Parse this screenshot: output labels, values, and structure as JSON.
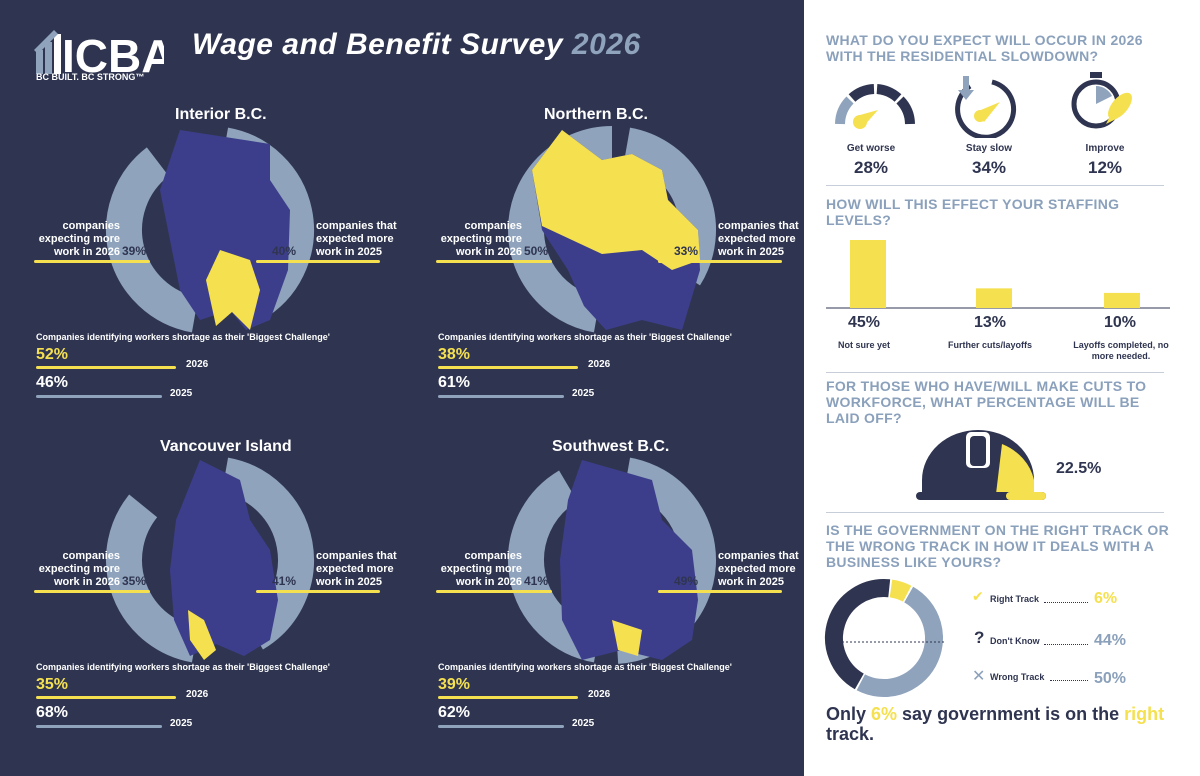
{
  "header": {
    "logo_text": "ICBA",
    "logo_tagline": "BC BUILT. BC STRONG™",
    "title_main": "Wage and Benefit Survey",
    "title_year": "2026"
  },
  "colors": {
    "navy": "#2f3550",
    "slate": "#8fa3bd",
    "yellow": "#f5e050",
    "region": "#3c3e8c"
  },
  "regions": [
    {
      "name": "Interior B.C.",
      "expecting_2026_label": "companies expecting more work in 2026",
      "expecting_2026_pct": "39%",
      "expected_2025_label": "companies that expected more work in 2025",
      "expected_2025_pct": "40%",
      "shortage_caption": "Companies identifying workers shortage as their 'Biggest Challenge'",
      "shortage_2026": "52%",
      "shortage_2026_year": "2026",
      "shortage_2025": "46%",
      "shortage_2025_year": "2025"
    },
    {
      "name": "Northern B.C.",
      "expecting_2026_label": "companies expecting more work in 2026",
      "expecting_2026_pct": "50%",
      "expected_2025_label": "companies that expected more work in 2025",
      "expected_2025_pct": "33%",
      "shortage_caption": "Companies identifying workers shortage as their 'Biggest Challenge'",
      "shortage_2026": "38%",
      "shortage_2026_year": "2026",
      "shortage_2025": "61%",
      "shortage_2025_year": "2025"
    },
    {
      "name": "Vancouver Island",
      "expecting_2026_label": "companies expecting more work in 2026",
      "expecting_2026_pct": "35%",
      "expected_2025_label": "companies that expected more work in 2025",
      "expected_2025_pct": "41%",
      "shortage_caption": "Companies identifying workers shortage as their 'Biggest Challenge'",
      "shortage_2026": "35%",
      "shortage_2026_year": "2026",
      "shortage_2025": "68%",
      "shortage_2025_year": "2025"
    },
    {
      "name": "Southwest B.C.",
      "expecting_2026_label": "companies expecting more work in 2026",
      "expecting_2026_pct": "41%",
      "expected_2025_label": "companies that expected more work in 2025",
      "expected_2025_pct": "49%",
      "shortage_caption": "Companies identifying workers shortage as their 'Biggest Challenge'",
      "shortage_2026": "39%",
      "shortage_2026_year": "2026",
      "shortage_2025": "62%",
      "shortage_2025_year": "2025"
    }
  ],
  "q1": {
    "question": "WHAT DO YOU EXPECT WILL OCCUR IN 2026 WITH THE RESIDENTIAL SLOWDOWN?",
    "items": [
      {
        "label": "Get worse",
        "value": "28%"
      },
      {
        "label": "Stay slow",
        "value": "34%"
      },
      {
        "label": "Improve",
        "value": "12%"
      }
    ]
  },
  "q2": {
    "question": "HOW WILL THIS EFFECT YOUR STAFFING LEVELS?",
    "items": [
      {
        "label": "Not sure yet",
        "value": "45%"
      },
      {
        "label": "Further cuts/layoffs",
        "value": "13%"
      },
      {
        "label": "Layoffs completed, no more needed.",
        "value": "10%"
      }
    ]
  },
  "q3": {
    "question": "FOR THOSE WHO HAVE/WILL MAKE CUTS TO WORKFORCE, WHAT PERCENTAGE WILL BE LAID OFF?",
    "value": "22.5%"
  },
  "q4": {
    "question": "IS THE GOVERNMENT ON THE RIGHT TRACK OR THE WRONG TRACK IN HOW IT DEALS WITH A BUSINESS LIKE YOURS?",
    "items": [
      {
        "label": "Right Track",
        "value": "6%",
        "icon": "check-icon"
      },
      {
        "label": "Don't Know",
        "value": "44%",
        "icon": "question-icon"
      },
      {
        "label": "Wrong Track",
        "value": "50%",
        "icon": "x-icon"
      }
    ],
    "summary_pre": "Only ",
    "summary_pct": "6%",
    "summary_mid": " say government is on the ",
    "summary_right": "right",
    "summary_post": " track."
  },
  "chart_data": [
    {
      "type": "pie",
      "title": "Interior B.C.",
      "categories": [
        "companies expecting more work in 2026",
        "companies that expected more work in 2025"
      ],
      "values": [
        39,
        40
      ]
    },
    {
      "type": "pie",
      "title": "Northern B.C.",
      "categories": [
        "companies expecting more work in 2026",
        "companies that expected more work in 2025"
      ],
      "values": [
        50,
        33
      ]
    },
    {
      "type": "pie",
      "title": "Vancouver Island",
      "categories": [
        "companies expecting more work in 2026",
        "companies that expected more work in 2025"
      ],
      "values": [
        35,
        41
      ]
    },
    {
      "type": "pie",
      "title": "Southwest B.C.",
      "categories": [
        "companies expecting more work in 2026",
        "companies that expected more work in 2025"
      ],
      "values": [
        41,
        49
      ]
    },
    {
      "type": "bar",
      "title": "HOW WILL THIS EFFECT YOUR STAFFING LEVELS?",
      "categories": [
        "Not sure yet",
        "Further cuts/layoffs",
        "Layoffs completed, no more needed."
      ],
      "values": [
        45,
        13,
        10
      ],
      "ylim": [
        0,
        45
      ]
    },
    {
      "type": "pie",
      "title": "Government track",
      "categories": [
        "Right Track",
        "Don't Know",
        "Wrong Track"
      ],
      "values": [
        6,
        44,
        50
      ]
    }
  ]
}
